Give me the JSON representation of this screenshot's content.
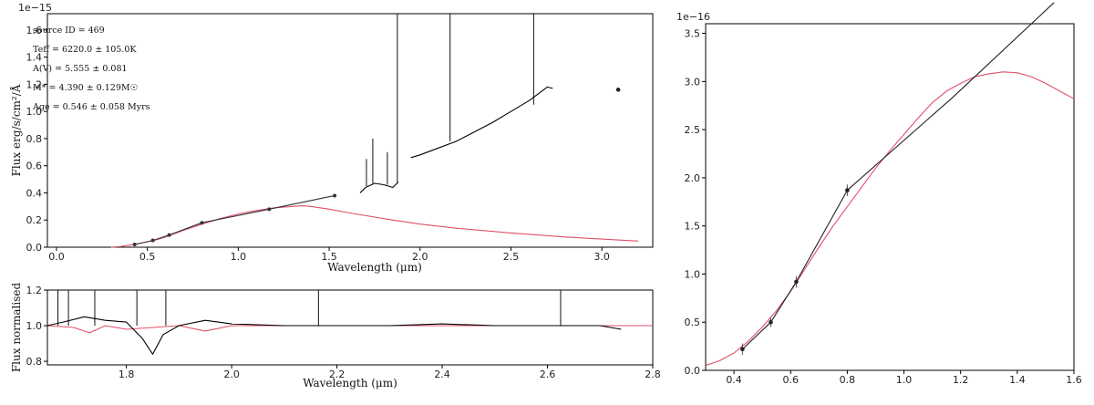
{
  "chart_data": [
    {
      "id": "sed",
      "type": "line",
      "xlabel": "Wavelength (μm)",
      "ylabel": "Flux erg/s/cm²/Å",
      "offset_text": "1e−15",
      "xlim": [
        -0.05,
        3.28
      ],
      "ylim": [
        0,
        1.72
      ],
      "xticks": [
        0.0,
        0.5,
        1.0,
        1.5,
        2.0,
        2.5,
        3.0
      ],
      "yticks": [
        0.0,
        0.2,
        0.4,
        0.6,
        0.8,
        1.0,
        1.2,
        1.4,
        1.6
      ],
      "annotations": [
        "source ID = 469",
        "Teff = 6220.0 ± 105.0K",
        "A(V) = 5.555 ± 0.081",
        "M* = 4.390 ± 0.129M☉",
        "Age = 0.546 ± 0.058 Myrs"
      ],
      "series": [
        {
          "color": "#e0506a",
          "x": [
            0.3,
            0.35,
            0.4,
            0.45,
            0.5,
            0.55,
            0.6,
            0.65,
            0.7,
            0.8,
            0.9,
            1.0,
            1.1,
            1.2,
            1.3,
            1.35,
            1.4,
            1.5,
            1.6,
            1.8,
            2.0,
            2.2,
            2.5,
            2.8,
            3.0,
            3.2
          ],
          "y": [
            0.0,
            0.005,
            0.015,
            0.025,
            0.04,
            0.055,
            0.075,
            0.1,
            0.125,
            0.17,
            0.21,
            0.245,
            0.27,
            0.29,
            0.3,
            0.305,
            0.3,
            0.28,
            0.255,
            0.21,
            0.17,
            0.14,
            0.105,
            0.075,
            0.06,
            0.045
          ]
        },
        {
          "color": "#333333",
          "x": [
            0.43,
            0.53,
            0.62,
            0.8,
            1.17,
            1.53
          ],
          "y": [
            0.02,
            0.05,
            0.09,
            0.18,
            0.28,
            0.38
          ]
        },
        {
          "color": "#000000",
          "x": [
            1.67,
            1.7,
            1.75,
            1.8,
            1.85,
            1.88
          ],
          "y": [
            0.4,
            0.44,
            0.47,
            0.46,
            0.44,
            0.48
          ]
        },
        {
          "color": "#000000",
          "x": [
            1.95,
            2.0,
            2.1,
            2.2,
            2.3,
            2.4,
            2.5,
            2.6,
            2.7,
            2.73
          ],
          "y": [
            0.66,
            0.68,
            0.73,
            0.78,
            0.85,
            0.92,
            1.0,
            1.08,
            1.18,
            1.17
          ]
        }
      ],
      "lines": [
        {
          "x": 1.705,
          "y0": 0.45,
          "y1": 0.65
        },
        {
          "x": 1.74,
          "y0": 0.47,
          "y1": 0.8
        },
        {
          "x": 1.82,
          "y0": 0.46,
          "y1": 0.7
        },
        {
          "x": 1.875,
          "y0": 0.47,
          "y1": 1.72
        },
        {
          "x": 2.165,
          "y0": 0.78,
          "y1": 1.72
        },
        {
          "x": 2.625,
          "y0": 1.05,
          "y1": 1.72
        }
      ],
      "points": [
        {
          "x": 3.09,
          "y": 1.16
        }
      ]
    },
    {
      "id": "normalised",
      "type": "line",
      "xlabel": "Wavelength (μm)",
      "ylabel": "Flux normalised",
      "xlim": [
        1.65,
        2.8
      ],
      "ylim": [
        0.78,
        1.2
      ],
      "xticks": [
        1.8,
        2.0,
        2.2,
        2.4,
        2.6,
        2.8
      ],
      "yticks": [
        0.8,
        1.0,
        1.2
      ],
      "series": [
        {
          "color": "#e0506a",
          "x": [
            1.65,
            1.7,
            1.73,
            1.76,
            1.8,
            1.85,
            1.9,
            1.95,
            2.0,
            2.2,
            2.4,
            2.6,
            2.75,
            2.8
          ],
          "y": [
            1.0,
            0.99,
            0.96,
            1.0,
            0.98,
            0.99,
            1.0,
            0.97,
            1.0,
            1.0,
            1.0,
            1.0,
            1.0,
            1.0
          ]
        },
        {
          "color": "#000000",
          "x": [
            1.65,
            1.68,
            1.72,
            1.76,
            1.8,
            1.83,
            1.85,
            1.87,
            1.9,
            1.95,
            2.0,
            2.1,
            2.2,
            2.3,
            2.4,
            2.5,
            2.6,
            2.7,
            2.74
          ],
          "y": [
            1.0,
            1.02,
            1.05,
            1.03,
            1.02,
            0.93,
            0.84,
            0.95,
            1.0,
            1.03,
            1.01,
            1.0,
            1.0,
            1.0,
            1.01,
            1.0,
            1.0,
            1.0,
            0.98
          ]
        }
      ],
      "lines": [
        {
          "x": 1.67,
          "y0": 1.0,
          "y1": 1.2
        },
        {
          "x": 1.69,
          "y0": 1.0,
          "y1": 1.2
        },
        {
          "x": 1.74,
          "y0": 1.0,
          "y1": 1.2
        },
        {
          "x": 1.82,
          "y0": 1.0,
          "y1": 1.2
        },
        {
          "x": 1.875,
          "y0": 1.0,
          "y1": 1.2
        },
        {
          "x": 2.165,
          "y0": 1.0,
          "y1": 1.2
        },
        {
          "x": 2.625,
          "y0": 1.0,
          "y1": 1.2
        }
      ]
    },
    {
      "id": "zoom",
      "type": "line",
      "offset_text": "1e−16",
      "xlim": [
        0.3,
        1.6
      ],
      "ylim": [
        0.0,
        3.6
      ],
      "xticks": [
        0.4,
        0.6,
        0.8,
        1.0,
        1.2,
        1.4,
        1.6
      ],
      "yticks": [
        0.0,
        0.5,
        1.0,
        1.5,
        2.0,
        2.5,
        3.0,
        3.5
      ],
      "series": [
        {
          "color": "#e0506a",
          "x": [
            0.3,
            0.35,
            0.4,
            0.45,
            0.5,
            0.55,
            0.6,
            0.65,
            0.7,
            0.75,
            0.8,
            0.85,
            0.9,
            0.95,
            1.0,
            1.05,
            1.1,
            1.15,
            1.2,
            1.25,
            1.3,
            1.35,
            1.4,
            1.45,
            1.5,
            1.55,
            1.6
          ],
          "y": [
            0.05,
            0.1,
            0.18,
            0.3,
            0.45,
            0.62,
            0.82,
            1.05,
            1.28,
            1.5,
            1.7,
            1.9,
            2.1,
            2.28,
            2.45,
            2.62,
            2.78,
            2.9,
            2.98,
            3.05,
            3.08,
            3.1,
            3.09,
            3.05,
            2.98,
            2.9,
            2.82
          ]
        },
        {
          "color": "#222222",
          "x": [
            0.43,
            0.53,
            0.62,
            0.8,
            1.17,
            1.53
          ],
          "y": [
            0.22,
            0.5,
            0.92,
            1.87,
            2.83,
            3.82
          ]
        }
      ],
      "points": [
        {
          "x": 0.43,
          "y": 0.22,
          "err": 0.06
        },
        {
          "x": 0.53,
          "y": 0.5,
          "err": 0.05
        },
        {
          "x": 0.62,
          "y": 0.92,
          "err": 0.06
        },
        {
          "x": 0.8,
          "y": 1.87,
          "err": 0.06
        }
      ]
    }
  ]
}
